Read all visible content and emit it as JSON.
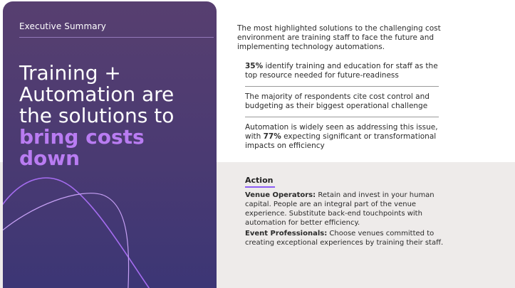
{
  "panel": {
    "label": "Executive Summary",
    "headline_plain": [
      "Training +",
      "Automation are",
      "the solutions to"
    ],
    "headline_accent": [
      "bring costs",
      "down"
    ]
  },
  "intro": "The most highlighted solutions to the challenging cost environment are training staff to face the future and implementing technology automations.",
  "points": [
    {
      "bold": "35%",
      "text": " identify training and education for staff as the top resource needed for future-readiness"
    },
    {
      "bold": "",
      "text": "The majority of respondents cite cost control and budgeting as their biggest operational challenge"
    },
    {
      "pre": "Automation is widely seen as addressing this issue, with ",
      "bold": "77%",
      "post": " expecting significant or transformational impacts on efficiency"
    }
  ],
  "action": {
    "title": "Action",
    "items": [
      {
        "lead": "Venue Operators:",
        "text": " Retain and invest in your human capital. People are an integral part of the venue experience. Substitute back-end touchpoints with automation for better efficiency."
      },
      {
        "lead": "Event Professionals:",
        "text": " Choose venues committed to creating exceptional experiences by training their staff."
      }
    ]
  },
  "colors": {
    "panel": "#4a3a72",
    "accent": "#b97cf2",
    "band": "#eeebea"
  }
}
